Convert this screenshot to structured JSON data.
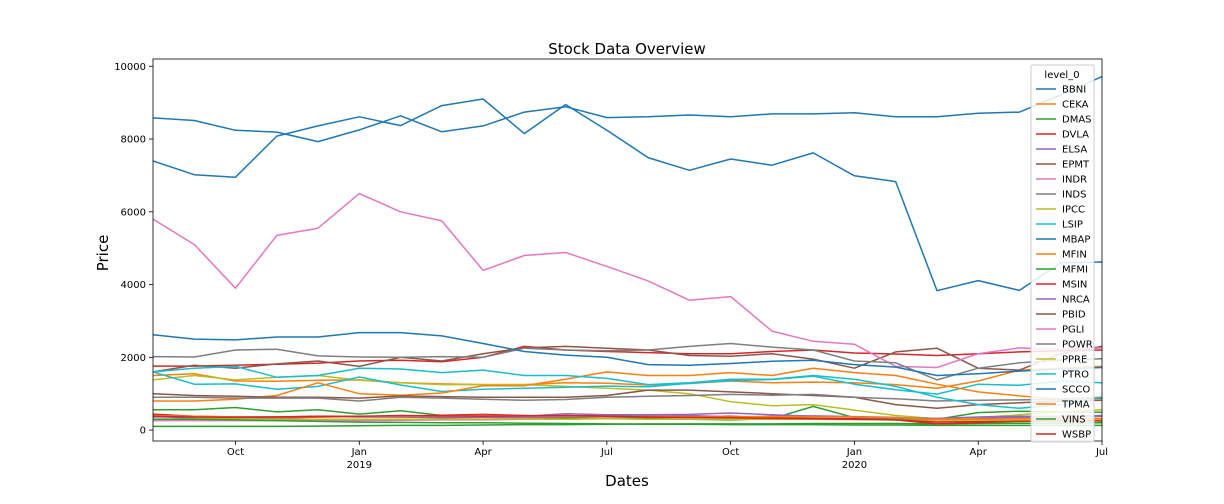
{
  "chart_data": {
    "type": "line",
    "title": "Stock Data Overview",
    "xlabel": "Dates",
    "ylabel": "Price",
    "legend_title": "level_0",
    "legend_position": "top-right",
    "grid": false,
    "ylim": [
      -300,
      10200
    ],
    "y_ticks": [
      0,
      2000,
      4000,
      6000,
      8000,
      10000
    ],
    "x_ticks": [
      {
        "label": "Oct",
        "sublabel": "",
        "index": 2
      },
      {
        "label": "Jan",
        "sublabel": "2019",
        "index": 5
      },
      {
        "label": "Apr",
        "sublabel": "",
        "index": 8
      },
      {
        "label": "Jul",
        "sublabel": "",
        "index": 11
      },
      {
        "label": "Oct",
        "sublabel": "",
        "index": 14
      },
      {
        "label": "Jan",
        "sublabel": "2020",
        "index": 17
      },
      {
        "label": "Apr",
        "sublabel": "",
        "index": 20
      },
      {
        "label": "Jul",
        "sublabel": "",
        "index": 23
      }
    ],
    "x": [
      "2018-08",
      "2018-09",
      "2018-10",
      "2018-11",
      "2018-12",
      "2019-01",
      "2019-02",
      "2019-03",
      "2019-04",
      "2019-05",
      "2019-06",
      "2019-07",
      "2019-08",
      "2019-09",
      "2019-10",
      "2019-11",
      "2019-12",
      "2020-01",
      "2020-02",
      "2020-03",
      "2020-04",
      "2020-05",
      "2020-06",
      "2020-07"
    ],
    "series": [
      {
        "name": "BBNI",
        "color": "#1f77b4",
        "values": [
          7400,
          7020,
          6950,
          8080,
          8360,
          8610,
          8370,
          8920,
          9100,
          8150,
          8950,
          8240,
          7490,
          7140,
          7450,
          7280,
          7620,
          6990,
          6830,
          3830,
          4110,
          3840,
          4600,
          4620
        ]
      },
      {
        "name": "CEKA",
        "color": "#ff7f0e",
        "values": [
          1500,
          1550,
          1350,
          1340,
          1370,
          1380,
          1300,
          1270,
          1250,
          1250,
          1300,
          1290,
          1240,
          1280,
          1350,
          1300,
          1320,
          1300,
          1250,
          1150,
          1350,
          1650,
          1700,
          1750
        ]
      },
      {
        "name": "DMAS",
        "color": "#2ca02c",
        "values": [
          560,
          560,
          620,
          500,
          560,
          440,
          530,
          400,
          410,
          350,
          330,
          320,
          340,
          300,
          280,
          310,
          650,
          340,
          300,
          300,
          480,
          520,
          500,
          490
        ]
      },
      {
        "name": "DVLA",
        "color": "#d62728",
        "values": [
          1760,
          1760,
          1780,
          1810,
          1840,
          1900,
          1920,
          1880,
          2000,
          2300,
          2200,
          2160,
          2130,
          2100,
          2100,
          2160,
          2200,
          2120,
          2090,
          2050,
          2100,
          2150,
          2180,
          2200
        ]
      },
      {
        "name": "ELSA",
        "color": "#9467bd",
        "values": [
          360,
          370,
          360,
          360,
          380,
          360,
          360,
          340,
          350,
          340,
          360,
          380,
          380,
          400,
          360,
          380,
          390,
          370,
          350,
          300,
          320,
          350,
          370,
          380
        ]
      },
      {
        "name": "EPMT",
        "color": "#8c564b",
        "values": [
          1600,
          1780,
          1700,
          1820,
          1900,
          1750,
          2000,
          1900,
          2100,
          2260,
          2300,
          2250,
          2200,
          2050,
          2030,
          2100,
          1950,
          1700,
          2150,
          2250,
          1700,
          1650,
          2100,
          2300
        ]
      },
      {
        "name": "INDR",
        "color": "#e377c2",
        "values": [
          5800,
          5100,
          3900,
          5350,
          5550,
          6500,
          6000,
          5750,
          4390,
          4800,
          4880,
          4500,
          4100,
          3570,
          3670,
          2720,
          2440,
          2360,
          1750,
          1720,
          2100,
          2260,
          2210,
          2260
        ]
      },
      {
        "name": "INDS",
        "color": "#7f7f7f",
        "values": [
          2020,
          2010,
          2200,
          2220,
          2040,
          2010,
          2000,
          2020,
          2000,
          2250,
          2200,
          2180,
          2200,
          2300,
          2380,
          2280,
          2200,
          1900,
          1850,
          1380,
          1700,
          1850,
          1920,
          1960
        ]
      },
      {
        "name": "IPCC",
        "color": "#bcbd22",
        "values": [
          1380,
          1500,
          1380,
          1450,
          1500,
          1370,
          1300,
          1250,
          1250,
          1250,
          1200,
          1150,
          1100,
          1000,
          780,
          670,
          700,
          550,
          400,
          310,
          350,
          420,
          500,
          560
        ]
      },
      {
        "name": "LSIP",
        "color": "#17becf",
        "values": [
          1600,
          1260,
          1270,
          1120,
          1200,
          1460,
          1240,
          1060,
          1120,
          1150,
          1180,
          1210,
          1190,
          1290,
          1360,
          1390,
          1480,
          1260,
          1110,
          990,
          1260,
          1230,
          1340,
          1300
        ]
      },
      {
        "name": "MBAP",
        "color": "#1f77b4",
        "values": [
          2620,
          2500,
          2480,
          2560,
          2560,
          2680,
          2680,
          2590,
          2380,
          2160,
          2060,
          2000,
          1800,
          1780,
          1830,
          1890,
          1920,
          1800,
          1730,
          1500,
          1550,
          1620,
          1680,
          1720
        ]
      },
      {
        "name": "MFIN",
        "color": "#ff7f0e",
        "values": [
          800,
          800,
          850,
          950,
          1300,
          1000,
          960,
          1020,
          1220,
          1220,
          1400,
          1600,
          1500,
          1500,
          1580,
          1500,
          1700,
          1580,
          1500,
          1260,
          1050,
          940,
          850,
          900
        ]
      },
      {
        "name": "MFMI",
        "color": "#2ca02c",
        "values": [
          100,
          100,
          100,
          100,
          110,
          120,
          130,
          130,
          140,
          150,
          150,
          160,
          170,
          170,
          170,
          170,
          180,
          180,
          180,
          170,
          180,
          190,
          190,
          200
        ]
      },
      {
        "name": "MSIN",
        "color": "#d62728",
        "values": [
          440,
          380,
          360,
          360,
          380,
          380,
          380,
          410,
          430,
          400,
          380,
          400,
          350,
          360,
          380,
          340,
          320,
          310,
          280,
          170,
          200,
          250,
          270,
          300
        ]
      },
      {
        "name": "NRCA",
        "color": "#9467bd",
        "values": [
          380,
          320,
          300,
          320,
          360,
          370,
          360,
          380,
          400,
          380,
          450,
          420,
          420,
          430,
          470,
          420,
          380,
          360,
          340,
          320,
          360,
          380,
          380,
          400
        ]
      },
      {
        "name": "PBID",
        "color": "#8c564b",
        "values": [
          1000,
          950,
          930,
          900,
          900,
          880,
          940,
          920,
          900,
          900,
          900,
          950,
          1100,
          1100,
          1050,
          1000,
          950,
          900,
          700,
          600,
          700,
          750,
          800,
          820
        ]
      },
      {
        "name": "PGLI",
        "color": "#e377c2",
        "values": [
          260,
          260,
          260,
          260,
          260,
          260,
          270,
          280,
          280,
          300,
          300,
          320,
          300,
          300,
          310,
          300,
          300,
          290,
          280,
          250,
          260,
          270,
          280,
          280
        ]
      },
      {
        "name": "POWR",
        "color": "#7f7f7f",
        "values": [
          900,
          900,
          880,
          880,
          880,
          800,
          900,
          880,
          850,
          820,
          840,
          900,
          930,
          950,
          980,
          960,
          980,
          900,
          860,
          800,
          820,
          830,
          850,
          870
        ]
      },
      {
        "name": "PPRE",
        "color": "#bcbd22",
        "values": [
          300,
          310,
          310,
          300,
          300,
          300,
          300,
          300,
          300,
          310,
          300,
          310,
          300,
          310,
          300,
          300,
          300,
          290,
          280,
          250,
          260,
          270,
          280,
          280
        ]
      },
      {
        "name": "PTRO",
        "color": "#17becf",
        "values": [
          1600,
          1700,
          1750,
          1450,
          1500,
          1700,
          1680,
          1580,
          1650,
          1500,
          1500,
          1420,
          1250,
          1300,
          1400,
          1400,
          1500,
          1400,
          1200,
          900,
          700,
          600,
          700,
          900
        ]
      },
      {
        "name": "SCCO",
        "color": "#1f77b4",
        "values": [
          8580,
          8510,
          8240,
          8190,
          7930,
          8250,
          8640,
          8200,
          8360,
          8740,
          8890,
          8590,
          8610,
          8660,
          8610,
          8690,
          8690,
          8720,
          8610,
          8610,
          8710,
          8740,
          9210,
          9720
        ]
      },
      {
        "name": "TPMA",
        "color": "#ff7f0e",
        "values": [
          400,
          380,
          360,
          350,
          360,
          380,
          380,
          380,
          400,
          380,
          380,
          370,
          370,
          370,
          360,
          370,
          360,
          360,
          340,
          300,
          300,
          310,
          320,
          320
        ]
      },
      {
        "name": "VINS",
        "color": "#2ca02c",
        "values": [
          300,
          300,
          280,
          260,
          240,
          220,
          210,
          200,
          200,
          190,
          180,
          170,
          160,
          160,
          150,
          150,
          150,
          140,
          140,
          130,
          130,
          130,
          130,
          130
        ]
      },
      {
        "name": "WSBP",
        "color": "#d62728",
        "values": [
          380,
          360,
          350,
          360,
          370,
          380,
          400,
          390,
          380,
          390,
          400,
          380,
          360,
          350,
          340,
          320,
          310,
          300,
          280,
          220,
          230,
          240,
          250,
          250
        ]
      }
    ]
  }
}
